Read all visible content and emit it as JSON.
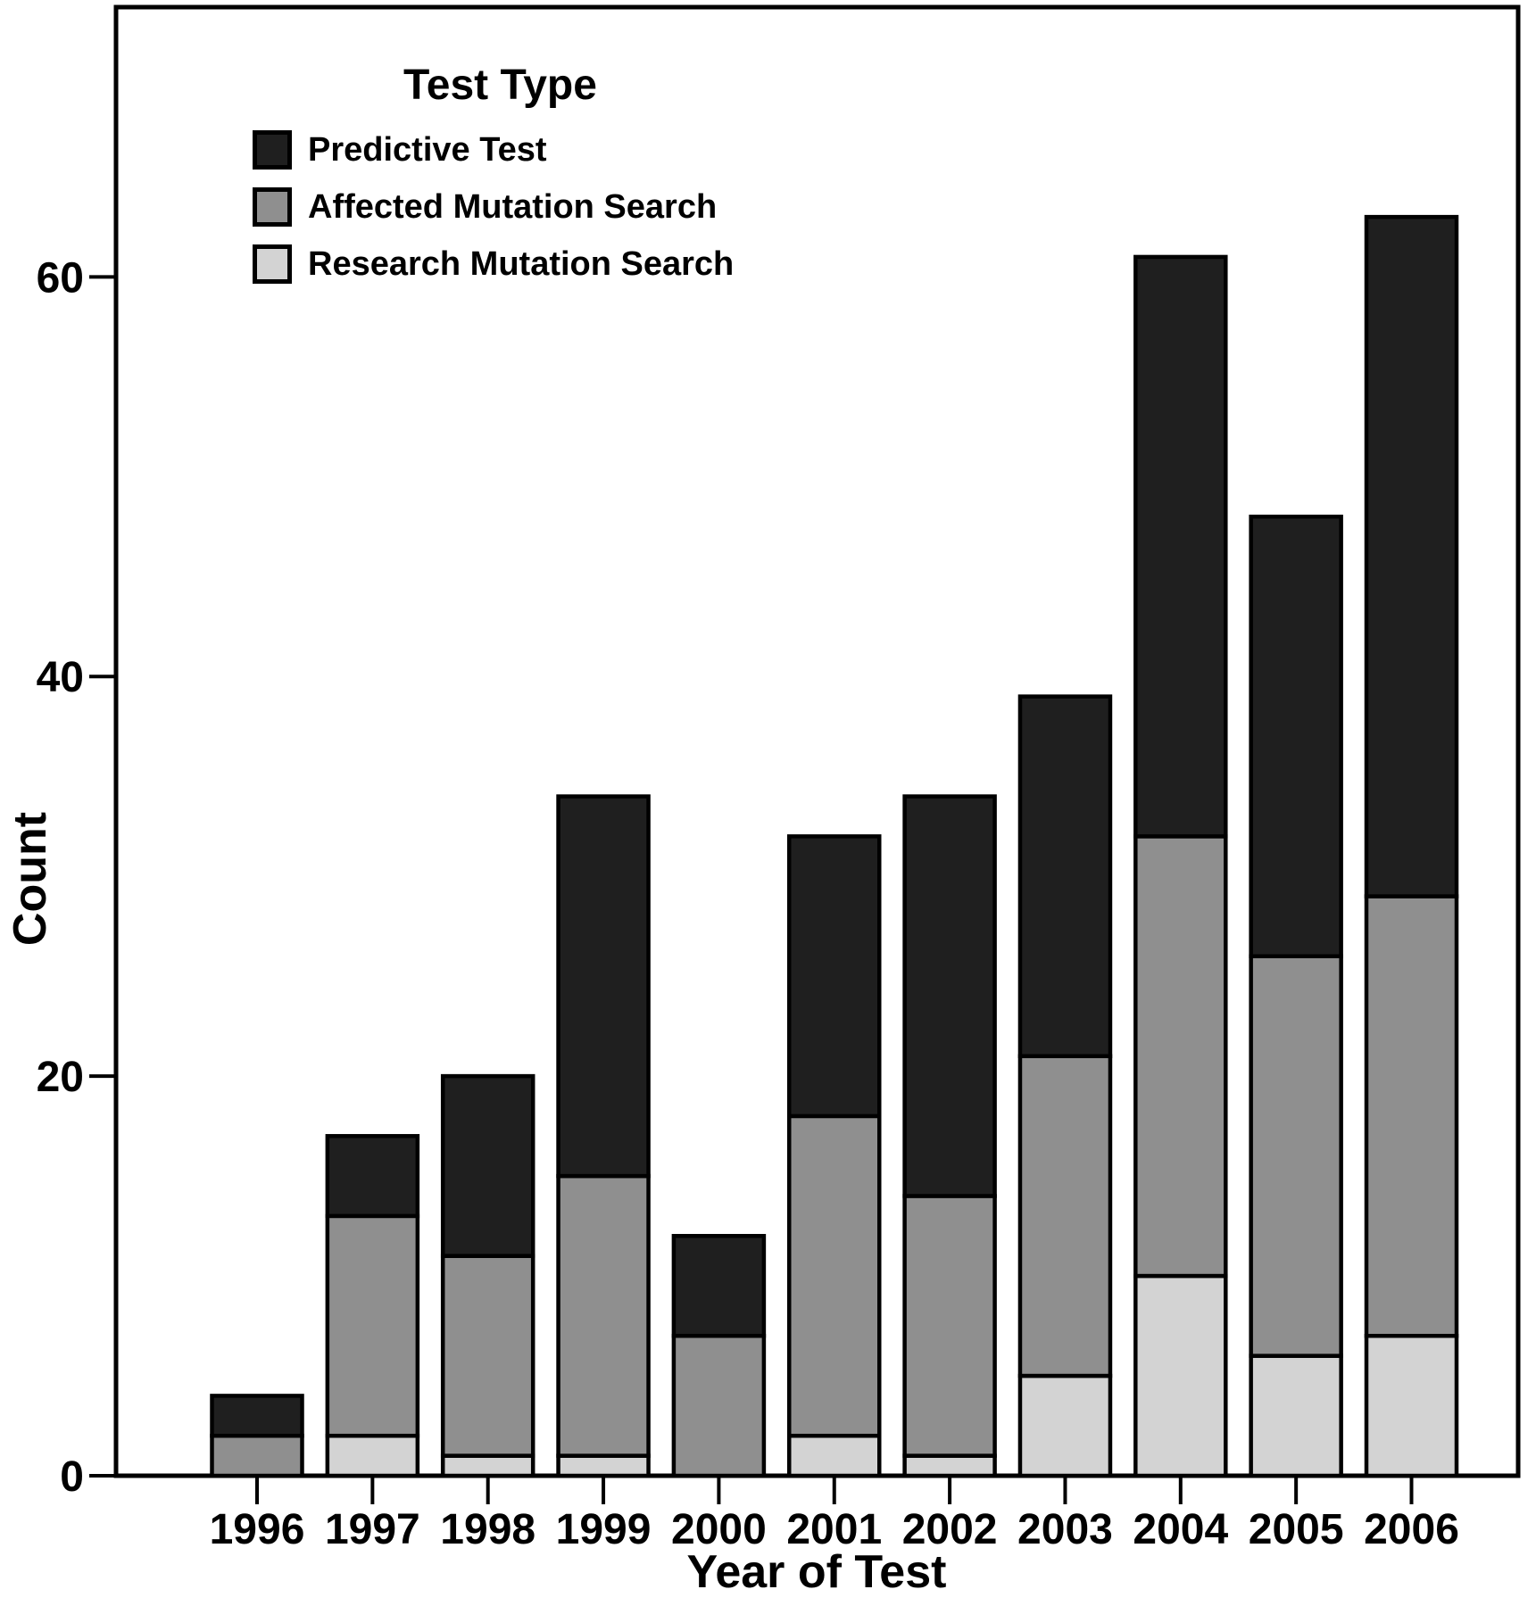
{
  "chart_data": {
    "type": "bar",
    "stacked": true,
    "title": "Test Type",
    "xlabel": "Year of Test",
    "ylabel": "Count",
    "categories": [
      "1996",
      "1997",
      "1998",
      "1999",
      "2000",
      "2001",
      "2002",
      "2003",
      "2004",
      "2005",
      "2006"
    ],
    "series": [
      {
        "name": "Predictive Test",
        "color": "#1f1f1f",
        "values": [
          2,
          4,
          9,
          19,
          5,
          14,
          20,
          18,
          29,
          22,
          34
        ]
      },
      {
        "name": "Affected Mutation Search",
        "color": "#8f8f8f",
        "values": [
          2,
          11,
          10,
          14,
          7,
          16,
          13,
          16,
          22,
          20,
          22
        ]
      },
      {
        "name": "Research Mutation Search",
        "color": "#d3d3d3",
        "values": [
          0,
          2,
          1,
          1,
          0,
          2,
          1,
          5,
          10,
          6,
          7
        ]
      }
    ],
    "totals": [
      4,
      17,
      20,
      34,
      12,
      32,
      34,
      39,
      61,
      48,
      63
    ],
    "stack_order_bottom_to_top": [
      "Research Mutation Search",
      "Affected Mutation Search",
      "Predictive Test"
    ],
    "yticks": [
      0,
      20,
      40,
      60
    ],
    "ylim": [
      0,
      73.5
    ],
    "grid": false,
    "legend_position": "inside-top-left",
    "axis_color": "#000000",
    "background_color": "#ffffff"
  }
}
